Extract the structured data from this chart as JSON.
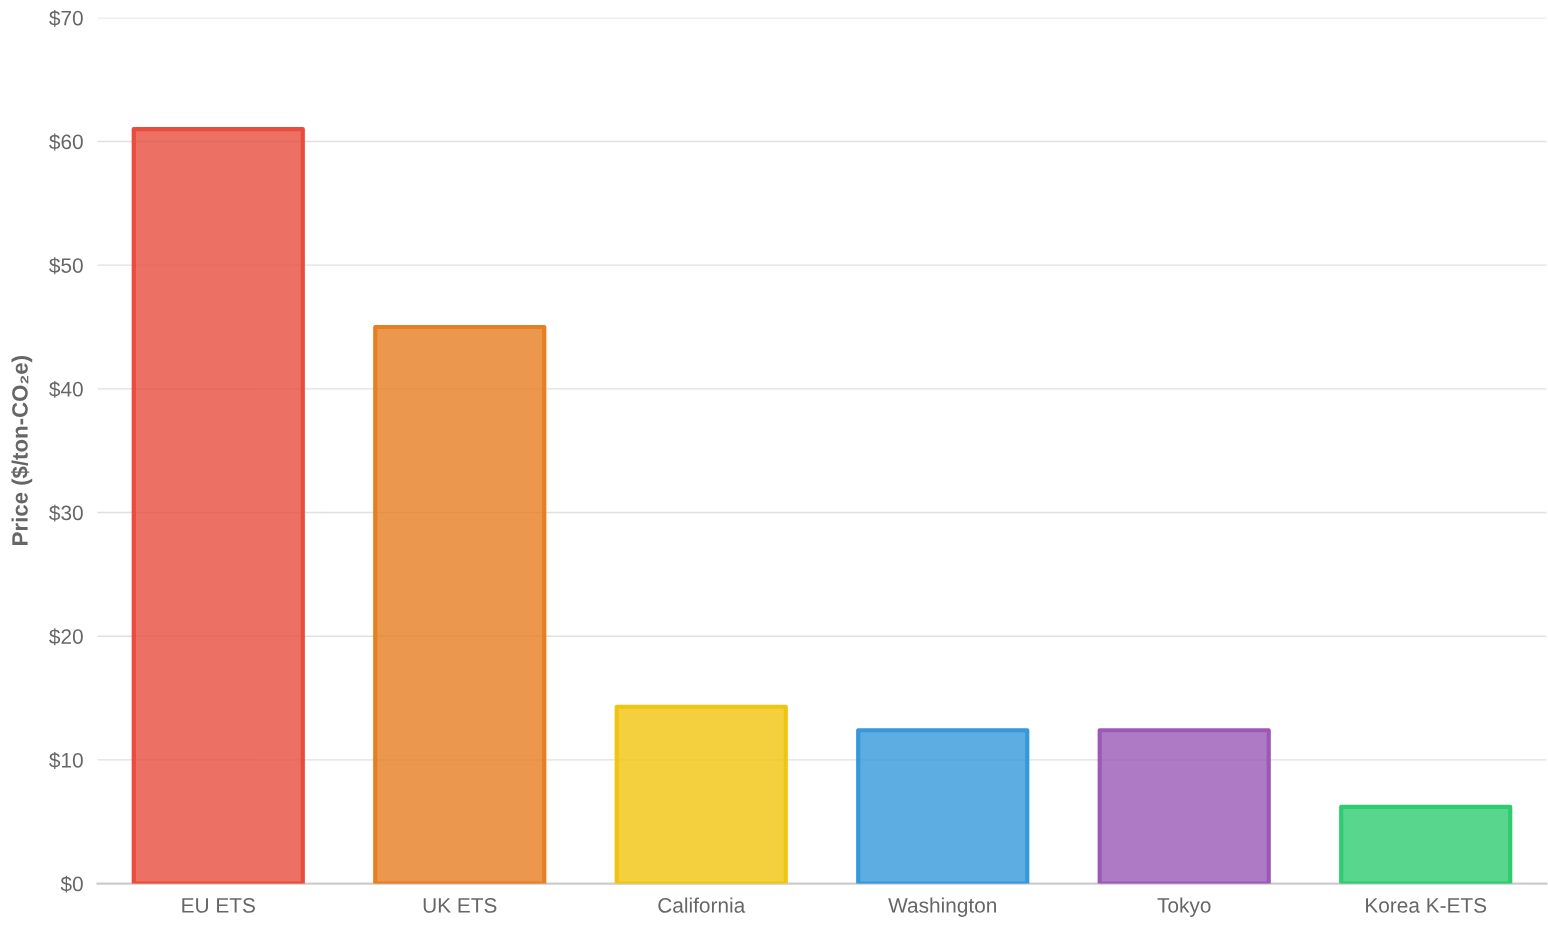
{
  "chart_data": {
    "type": "bar",
    "ylabel": "Price ($/ton-CO₂e)",
    "categories": [
      "EU ETS",
      "UK ETS",
      "California",
      "Washington",
      "Tokyo",
      "Korea K-ETS"
    ],
    "values": [
      61,
      45,
      14.3,
      12.4,
      12.4,
      6.2
    ],
    "colors": [
      "#e74c3c",
      "#e67e22",
      "#f1c40f",
      "#3498db",
      "#9b59b6",
      "#2ecc71"
    ],
    "ylim": [
      0,
      70
    ],
    "yticks": [
      {
        "value": 0,
        "label": "$0"
      },
      {
        "value": 10,
        "label": "$10"
      },
      {
        "value": 20,
        "label": "$20"
      },
      {
        "value": 30,
        "label": "$30"
      },
      {
        "value": 40,
        "label": "$40"
      },
      {
        "value": 50,
        "label": "$50"
      },
      {
        "value": 60,
        "label": "$60"
      },
      {
        "value": 70,
        "label": "$70"
      }
    ],
    "grid": "y"
  }
}
